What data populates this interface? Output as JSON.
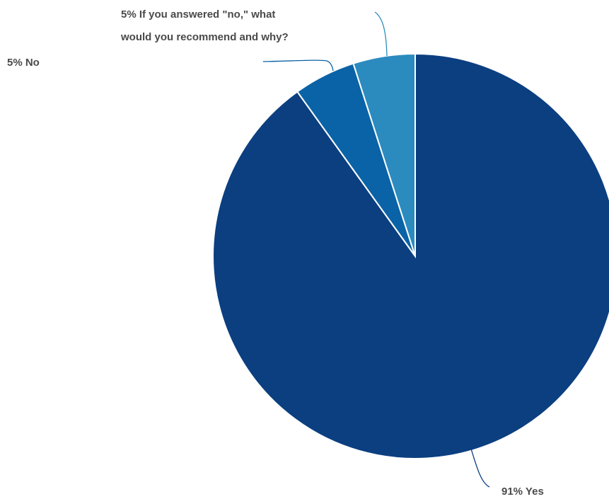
{
  "chart_data": {
    "type": "pie",
    "slices": [
      {
        "label": "Yes",
        "value": 91,
        "display": "91% Yes",
        "color": "#0b3f80"
      },
      {
        "label": "No",
        "value": 5,
        "display": "5% No",
        "color": "#0a63a6"
      },
      {
        "label": "If you answered \"no,\" what would you recommend and why?",
        "value": 5,
        "display_lines": [
          "5% If you answered \"no,\" what",
          "would you recommend and why?"
        ],
        "color": "#2b8bbf"
      }
    ]
  }
}
